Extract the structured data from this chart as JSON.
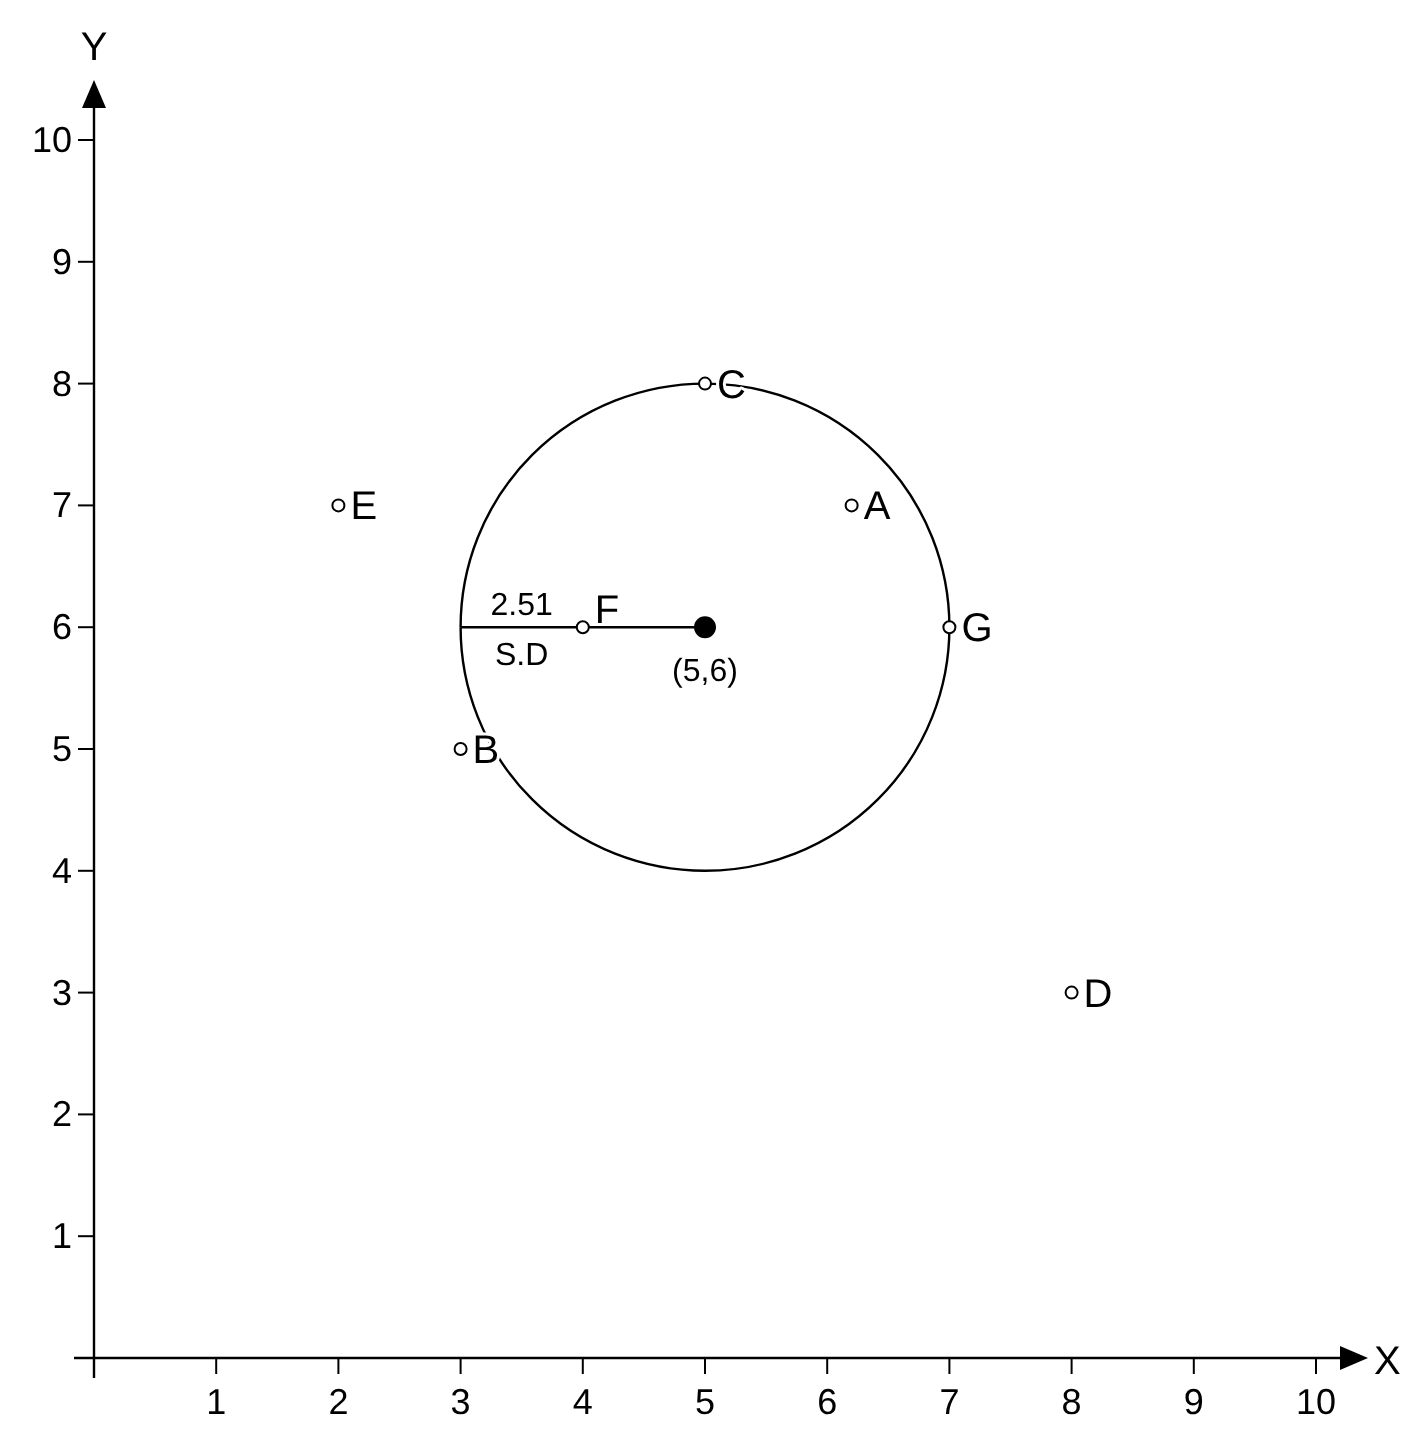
{
  "chart_data": {
    "type": "scatter",
    "xlabel": "X",
    "ylabel": "Y",
    "xlim": [
      0,
      10
    ],
    "ylim": [
      0,
      10
    ],
    "xticks": [
      1,
      2,
      3,
      4,
      5,
      6,
      7,
      8,
      9,
      10
    ],
    "yticks": [
      1,
      2,
      3,
      4,
      5,
      6,
      7,
      8,
      9,
      10
    ],
    "grid": false,
    "series": [
      {
        "type": "line",
        "color": "#000000",
        "x": [
          3,
          5
        ],
        "values": [
          6,
          6
        ]
      },
      {
        "color": "#ffffff",
        "marker": "circle",
        "x": [
          6.2,
          3,
          5,
          8,
          2,
          4,
          7
        ],
        "values": [
          7,
          5,
          8,
          3,
          7,
          6,
          6
        ]
      },
      {
        "color": "#000000",
        "marker": "circle",
        "x": [
          5
        ],
        "values": [
          6
        ]
      }
    ],
    "annotations": [
      {
        "text": "A",
        "x": 6.2,
        "y": 7
      },
      {
        "text": "B",
        "x": 3,
        "y": 5
      },
      {
        "text": "C",
        "x": 5,
        "y": 8
      },
      {
        "text": "D",
        "x": 8,
        "y": 3
      },
      {
        "text": "E",
        "x": 2,
        "y": 7
      },
      {
        "text": "F",
        "x": 4,
        "y": 6
      },
      {
        "text": "G",
        "x": 7,
        "y": 6
      },
      {
        "text": "2.51",
        "x": 3.5,
        "y": 6
      },
      {
        "text": "S.D",
        "x": 3.5,
        "y": 6
      },
      {
        "text": "(5,6)",
        "x": 5,
        "y": 6
      }
    ]
  }
}
